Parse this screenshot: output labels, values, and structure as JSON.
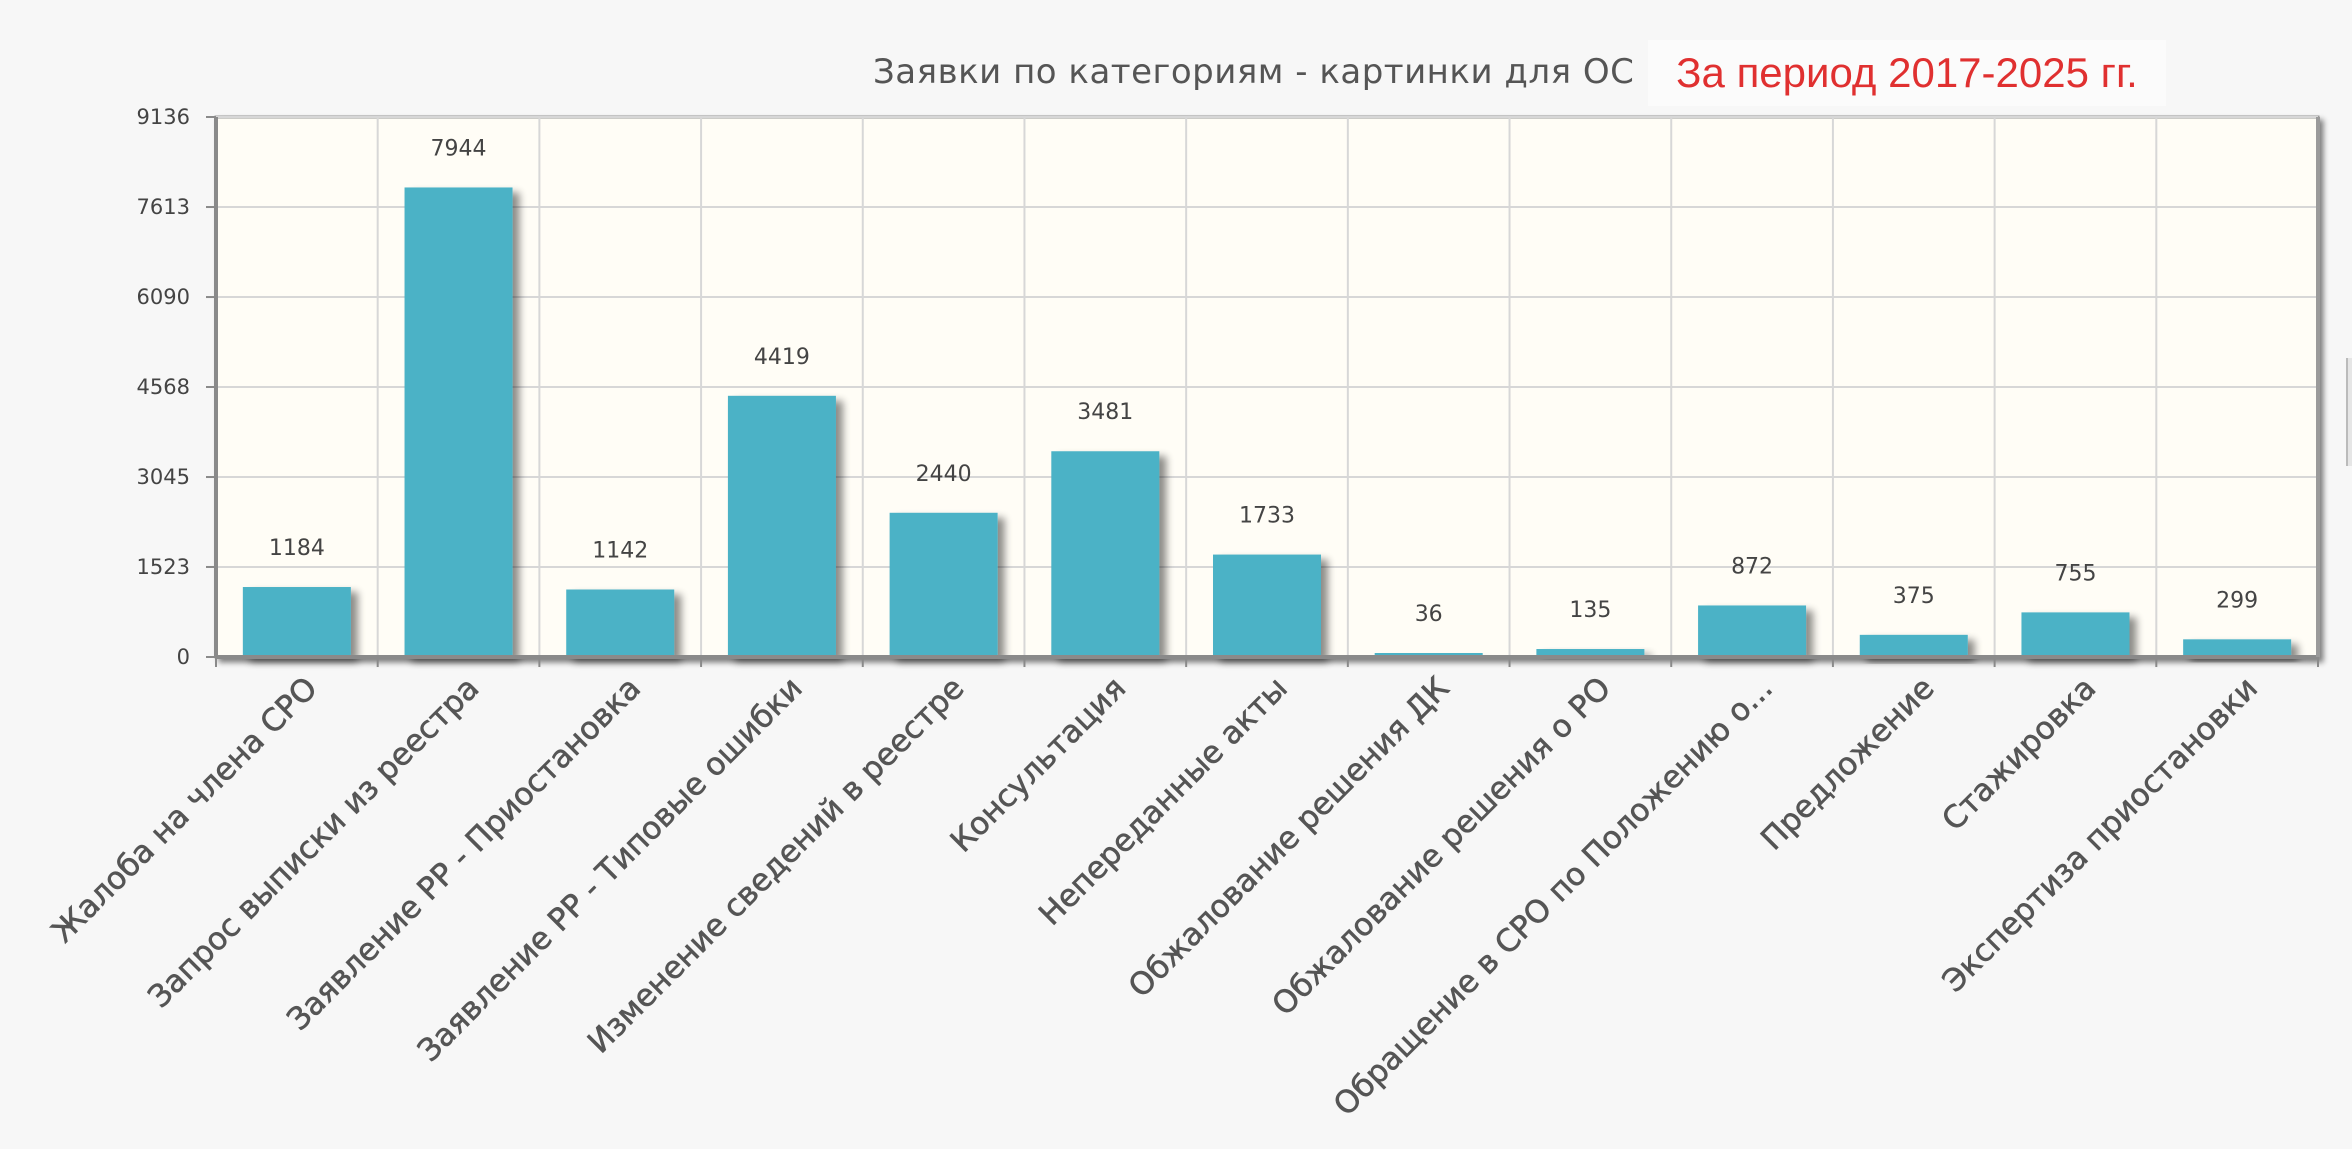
{
  "header": {
    "title": "Заявки по категориям - картинки для ОС",
    "period": "За период 2017-2025 гг."
  },
  "colors": {
    "bar": "#4bb2c6",
    "plot_background": "#fffdf6",
    "grid": "#d7d7d7",
    "axis": "#8a8a8a",
    "period_text": "#e03030"
  },
  "chart_data": {
    "type": "bar",
    "title": "Заявки по категориям - картинки для ОС",
    "xlabel": "",
    "ylabel": "",
    "categories": [
      "Жалоба на члена СРО",
      "Запрос выписки из реестра",
      "Заявление РР - Приостановка",
      "Заявление РР - Типовые ошибки",
      "Изменение сведений в реестре",
      "Консультация",
      "Непереданные акты",
      "Обжалование решения ДК",
      "Обжалование решения о РО",
      "Обращение в СРО по Положению о...",
      "Предложение",
      "Стажировка",
      "Экспертиза приостановки"
    ],
    "values": [
      1184,
      7944,
      1142,
      4419,
      2440,
      3481,
      1733,
      36,
      135,
      872,
      375,
      755,
      299
    ],
    "y_ticks": [
      0,
      1523,
      3045,
      4568,
      6090,
      7613,
      9136
    ],
    "ylim": [
      0,
      9136
    ],
    "grid": true,
    "data_labels": true
  }
}
